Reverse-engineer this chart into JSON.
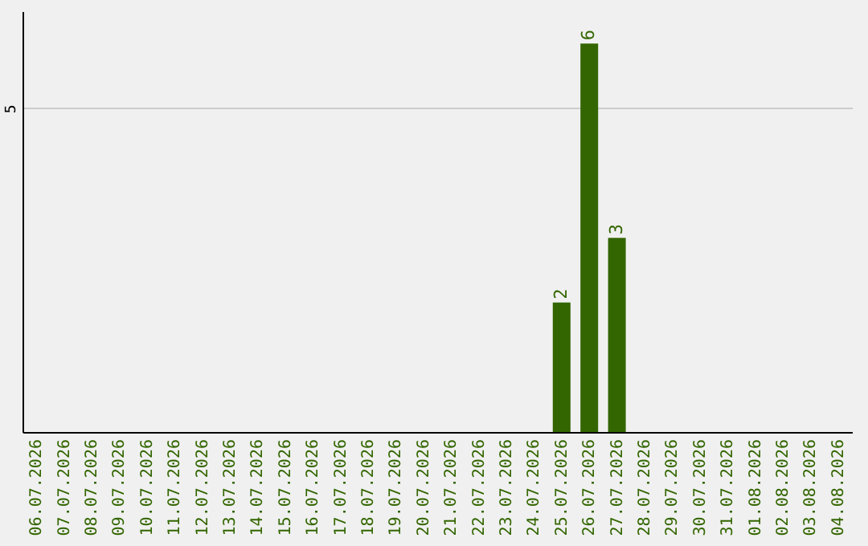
{
  "chart_data": {
    "type": "bar",
    "categories": [
      "06.07.2026",
      "07.07.2026",
      "08.07.2026",
      "09.07.2026",
      "10.07.2026",
      "11.07.2026",
      "12.07.2026",
      "13.07.2026",
      "14.07.2026",
      "15.07.2026",
      "16.07.2026",
      "17.07.2026",
      "18.07.2026",
      "19.07.2026",
      "20.07.2026",
      "21.07.2026",
      "22.07.2026",
      "23.07.2026",
      "24.07.2026",
      "25.07.2026",
      "26.07.2026",
      "27.07.2026",
      "28.07.2026",
      "29.07.2026",
      "30.07.2026",
      "31.07.2026",
      "01.08.2026",
      "02.08.2026",
      "03.08.2026",
      "04.08.2026"
    ],
    "values": [
      null,
      null,
      null,
      null,
      null,
      null,
      null,
      null,
      null,
      null,
      null,
      null,
      null,
      null,
      null,
      null,
      null,
      null,
      null,
      2,
      6,
      3,
      null,
      null,
      null,
      null,
      null,
      null,
      null,
      null
    ],
    "data_labels": true,
    "color": "#336600",
    "ylim": [
      0,
      6.5
    ],
    "yticks": [
      5
    ],
    "grid": "y"
  }
}
